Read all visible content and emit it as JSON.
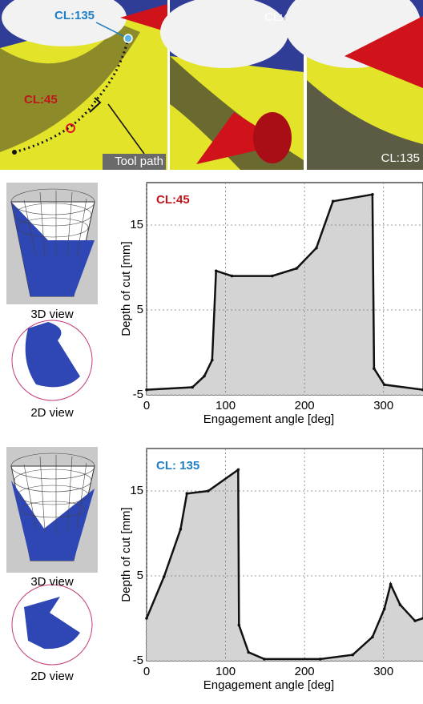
{
  "panels": {
    "overview_labels": [
      "CL:135",
      "CL:45",
      "Tool path"
    ],
    "view_labels": [
      "CL:45",
      "CL:135"
    ]
  },
  "side_views": [
    {
      "labels": [
        "3D view",
        "2D view"
      ]
    },
    {
      "labels": [
        "3D view",
        "2D view"
      ]
    }
  ],
  "chart_data": [
    {
      "type": "area",
      "title": "CL:45",
      "title_color": "#c0161c",
      "x_label": "Engagement angle [deg]",
      "y_label": "Depth of cut [mm]",
      "x": [
        0,
        58,
        73,
        83,
        88,
        108,
        159,
        190,
        215,
        236,
        286,
        288,
        301,
        350
      ],
      "values": [
        -4.4,
        -4.1,
        -2.8,
        -0.9,
        9.6,
        9.0,
        9.0,
        9.9,
        12.3,
        17.8,
        18.6,
        -1.9,
        -3.8,
        -4.4
      ],
      "color": "#111111",
      "fill_color": "#d4d4d4",
      "xlim": [
        0,
        350
      ],
      "ylim": [
        -5,
        20
      ],
      "xticks": [
        0,
        100,
        200,
        300
      ],
      "yticks": [
        -5,
        5,
        15
      ],
      "grid": true
    },
    {
      "type": "area",
      "title": "CL: 135",
      "title_color": "#1e7fc4",
      "x_label": "Engagement angle [deg]",
      "y_label": "Depth of cut [mm]",
      "x": [
        0,
        22,
        43,
        51,
        78,
        116,
        117,
        129,
        149,
        220,
        261,
        286,
        301,
        309,
        321,
        340,
        350
      ],
      "values": [
        0,
        4.9,
        10.5,
        14.7,
        15,
        17.5,
        -0.8,
        -4,
        -4.8,
        -4.8,
        -4.3,
        -2.2,
        1.1,
        4,
        1.6,
        -0.3,
        0
      ],
      "color": "#111111",
      "fill_color": "#d4d4d4",
      "xlim": [
        0,
        350
      ],
      "ylim": [
        -5,
        20
      ],
      "xticks": [
        0,
        100,
        200,
        300
      ],
      "yticks": [
        -5,
        5,
        15
      ],
      "grid": true
    }
  ]
}
